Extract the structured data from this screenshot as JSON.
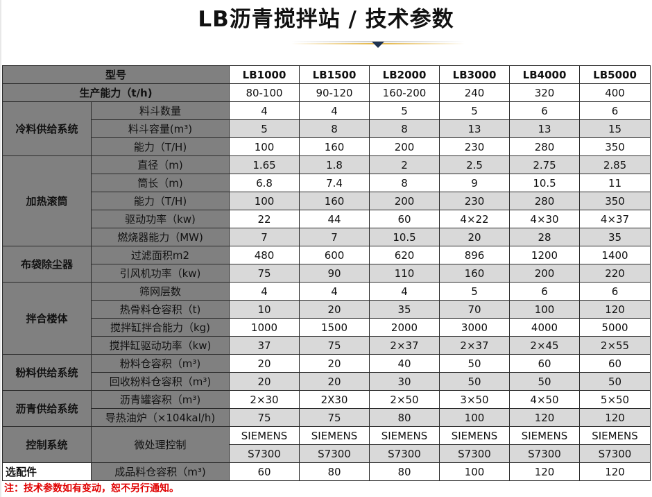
{
  "title": "LB沥青搅拌站 / 技术参数",
  "colors": {
    "header_gray": "#808080",
    "row_gray": "#d9d9d9",
    "deco_gold": "#e3b23c",
    "note_red": "#e00000"
  },
  "header": {
    "label": "型号",
    "models": [
      "LB1000",
      "LB1500",
      "LB2000",
      "LB3000",
      "LB4000",
      "LB5000"
    ]
  },
  "capacity": {
    "label": "生产能力（t/h)",
    "values": [
      "80-100",
      "90-120",
      "160-200",
      "240",
      "320",
      "400"
    ]
  },
  "groups": [
    {
      "name": "冷料供给系统",
      "rows": [
        {
          "label": "料斗数量",
          "values": [
            "4",
            "4",
            "5",
            "5",
            "6",
            "6"
          ]
        },
        {
          "label": "料斗容量(m³)",
          "values": [
            "5",
            "8",
            "8",
            "13",
            "13",
            "15"
          ]
        },
        {
          "label": "能力（T/H)",
          "values": [
            "100",
            "160",
            "200",
            "230",
            "280",
            "350"
          ]
        }
      ]
    },
    {
      "name": "加热滚筒",
      "rows": [
        {
          "label": "直径（m)",
          "values": [
            "1.65",
            "1.8",
            "2",
            "2.5",
            "2.75",
            "2.85"
          ]
        },
        {
          "label": "筒长（m)",
          "values": [
            "6.8",
            "7.4",
            "8",
            "9",
            "10.5",
            "11"
          ]
        },
        {
          "label": "能力（T/H)",
          "values": [
            "100",
            "160",
            "200",
            "230",
            "280",
            "350"
          ]
        },
        {
          "label": "驱动功率（kw)",
          "values": [
            "22",
            "44",
            "60",
            "4×22",
            "4×30",
            "4×37"
          ]
        },
        {
          "label": "燃烧器能力（MW)",
          "values": [
            "7",
            "7",
            "10.5",
            "20",
            "28",
            "35"
          ]
        }
      ]
    },
    {
      "name": "布袋除尘器",
      "rows": [
        {
          "label": "过滤面积m2",
          "values": [
            "480",
            "600",
            "620",
            "896",
            "1200",
            "1400"
          ]
        },
        {
          "label": "引风机功率（kw)",
          "values": [
            "75",
            "90",
            "110",
            "160",
            "200",
            "220"
          ]
        }
      ]
    },
    {
      "name": "拌合楼体",
      "rows": [
        {
          "label": "筛网层数",
          "values": [
            "4",
            "4",
            "4",
            "5",
            "6",
            "6"
          ]
        },
        {
          "label": "热骨料仓容积（t)",
          "values": [
            "10",
            "20",
            "35",
            "70",
            "100",
            "120"
          ]
        },
        {
          "label": "搅拌缸拌合能力（kg)",
          "values": [
            "1000",
            "1500",
            "2000",
            "3000",
            "4000",
            "5000"
          ]
        },
        {
          "label": "搅拌缸驱动功率（kw)",
          "values": [
            "37",
            "75",
            "2×37",
            "2×37",
            "2×45",
            "2×55"
          ]
        }
      ]
    },
    {
      "name": "粉料供给系统",
      "rows": [
        {
          "label": "粉料仓容积（m³)",
          "values": [
            "20",
            "20",
            "40",
            "50",
            "60",
            "60"
          ]
        },
        {
          "label": "回收粉料仓容积（m³)",
          "values": [
            "20",
            "20",
            "30",
            "50",
            "50",
            "50"
          ]
        }
      ]
    },
    {
      "name": "沥青供给系统",
      "rows": [
        {
          "label": "沥青罐容积（m³)",
          "values": [
            "2×30",
            "2X30",
            "2×50",
            "3×50",
            "4×50",
            "5×50"
          ]
        },
        {
          "label": "导热油炉（×104kal/h)",
          "values": [
            "75",
            "75",
            "80",
            "100",
            "120",
            "120"
          ]
        }
      ]
    }
  ],
  "control": {
    "name": "控制系统",
    "label": "微处理控制",
    "rows": [
      [
        "SIEMENS",
        "SIEMENS",
        "SIEMENS",
        "SIEMENS",
        "SIEMENS",
        "SIEMENS"
      ],
      [
        "S7300",
        "S7300",
        "S7300",
        "S7300",
        "S7300",
        "S7300"
      ]
    ]
  },
  "optional": {
    "name": "选配件",
    "label": "成品料仓容积（m³)",
    "values": [
      "60",
      "80",
      "80",
      "100",
      "120",
      "120"
    ]
  },
  "note": "注：技术参数如有变动，恕不另行通知。"
}
